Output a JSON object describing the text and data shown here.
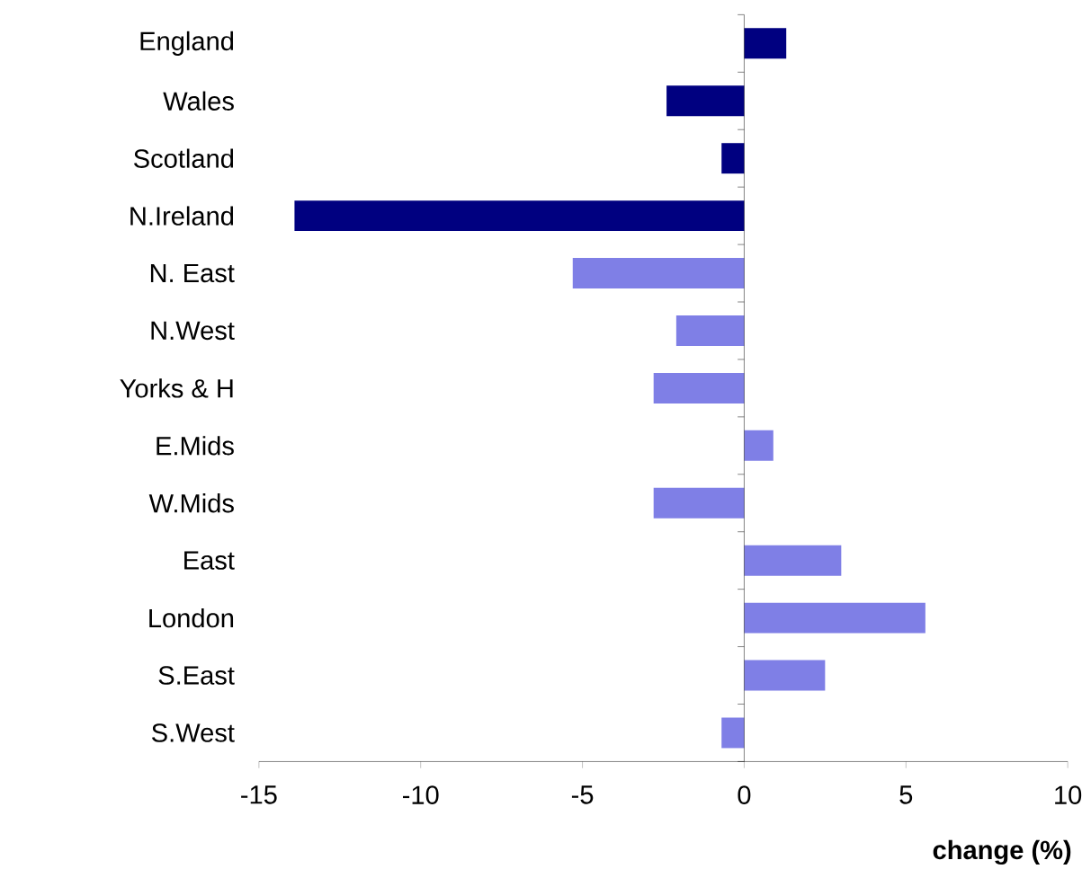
{
  "chart_data": {
    "type": "bar",
    "orientation": "horizontal",
    "xlabel": "change (%)",
    "categories": [
      "England",
      "Wales",
      "Scotland",
      "N.Ireland",
      "N. East",
      "N.West",
      "Yorks & H",
      "E.Mids",
      "W.Mids",
      "East",
      "London",
      "S.East",
      "S.West"
    ],
    "values": [
      1.3,
      -2.4,
      -0.7,
      -13.9,
      -5.3,
      -2.1,
      -2.8,
      0.9,
      -2.8,
      3.0,
      5.6,
      2.5,
      -0.7
    ],
    "colors": [
      "#000080",
      "#000080",
      "#000080",
      "#000080",
      "#7f7fe6",
      "#7f7fe6",
      "#7f7fe6",
      "#7f7fe6",
      "#7f7fe6",
      "#7f7fe6",
      "#7f7fe6",
      "#7f7fe6",
      "#7f7fe6"
    ],
    "xlim": [
      -15,
      10
    ],
    "xticks": [
      -15,
      -10,
      -5,
      0,
      5,
      10
    ]
  }
}
